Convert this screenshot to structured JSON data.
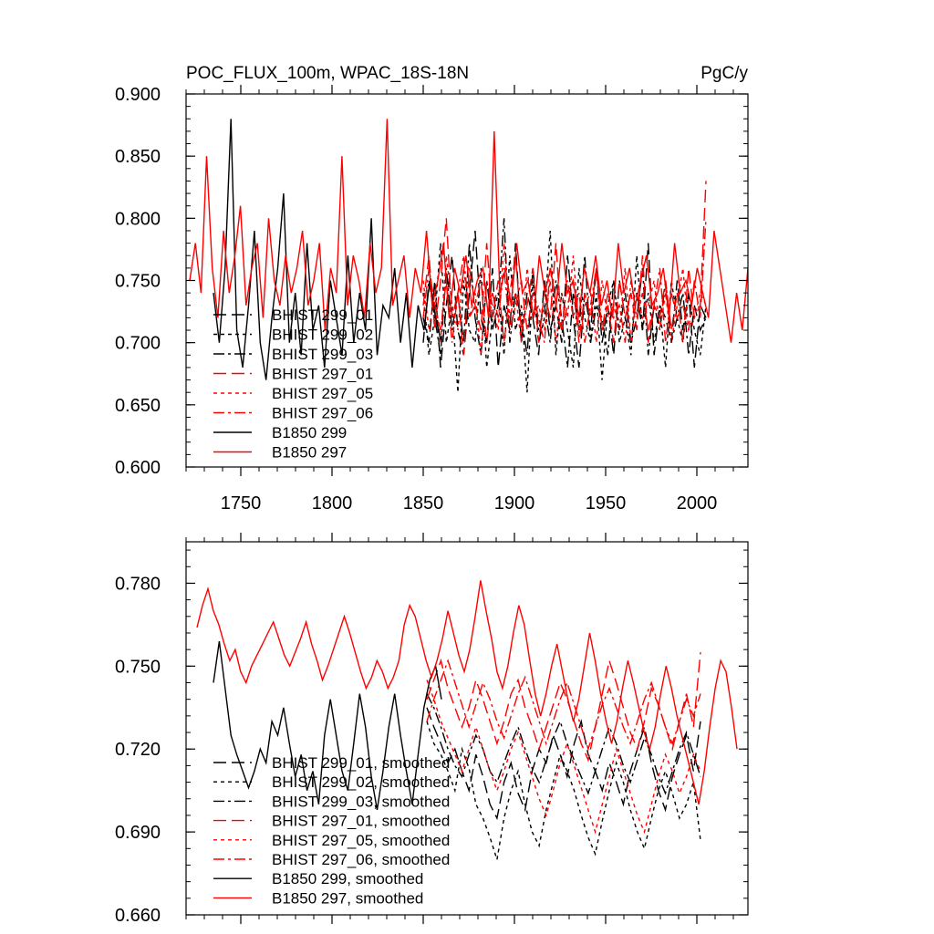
{
  "chart_data": [
    {
      "type": "line",
      "title": "POC_FLUX_100m, WPAC_18S-18N",
      "units": "PgC/y",
      "xlim": [
        1720,
        2028
      ],
      "ylim": [
        0.6,
        0.9
      ],
      "xticks": [
        1750,
        1800,
        1850,
        1900,
        1950,
        2000
      ],
      "xtick_labels": [
        "1750",
        "1800",
        "1850",
        "1900",
        "1950",
        "2000"
      ],
      "yticks": [
        0.6,
        0.65,
        0.7,
        0.75,
        0.8,
        0.85,
        0.9
      ],
      "ytick_labels": [
        "0.600",
        "0.650",
        "0.700",
        "0.750",
        "0.800",
        "0.850",
        "0.900"
      ],
      "legend_position": "bottom-left",
      "series": [
        {
          "name": "BHIST 299_01",
          "color": "#000000",
          "dash": "long-dash",
          "x_start": 1850,
          "x_end": 2005,
          "values": [
            0.72,
            0.7,
            0.75,
            0.68,
            0.73,
            0.77,
            0.71,
            0.69,
            0.74,
            0.79,
            0.72,
            0.7,
            0.76,
            0.68,
            0.73,
            0.71,
            0.78,
            0.7,
            0.74,
            0.72,
            0.69,
            0.75,
            0.71,
            0.73,
            0.7,
            0.77,
            0.72,
            0.68,
            0.74,
            0.71,
            0.76,
            0.7,
            0.73,
            0.69,
            0.75,
            0.72,
            0.7,
            0.74,
            0.71,
            0.78,
            0.69,
            0.73,
            0.72,
            0.7,
            0.75,
            0.71,
            0.74,
            0.68,
            0.73,
            0.72
          ]
        },
        {
          "name": "BHIST 299_02",
          "color": "#000000",
          "dash": "short-dash",
          "x_start": 1850,
          "x_end": 2005,
          "values": [
            0.74,
            0.69,
            0.72,
            0.78,
            0.7,
            0.73,
            0.66,
            0.75,
            0.71,
            0.7,
            0.76,
            0.68,
            0.72,
            0.74,
            0.69,
            0.77,
            0.71,
            0.73,
            0.66,
            0.75,
            0.7,
            0.72,
            0.79,
            0.69,
            0.74,
            0.71,
            0.68,
            0.76,
            0.72,
            0.7,
            0.74,
            0.67,
            0.73,
            0.75,
            0.7,
            0.72,
            0.69,
            0.77,
            0.71,
            0.74,
            0.7,
            0.73,
            0.68,
            0.75,
            0.72,
            0.7,
            0.74,
            0.71,
            0.69,
            0.73
          ]
        },
        {
          "name": "BHIST 299_03",
          "color": "#000000",
          "dash": "dash-dot",
          "x_start": 1850,
          "x_end": 2005,
          "values": [
            0.7,
            0.75,
            0.72,
            0.69,
            0.76,
            0.71,
            0.74,
            0.7,
            0.78,
            0.72,
            0.69,
            0.75,
            0.71,
            0.73,
            0.8,
            0.7,
            0.74,
            0.72,
            0.69,
            0.76,
            0.71,
            0.73,
            0.7,
            0.75,
            0.72,
            0.68,
            0.74,
            0.71,
            0.77,
            0.7,
            0.73,
            0.72,
            0.69,
            0.75,
            0.71,
            0.74,
            0.7,
            0.72,
            0.76,
            0.69,
            0.73,
            0.71,
            0.75,
            0.7,
            0.72,
            0.74,
            0.69,
            0.73,
            0.71,
            0.72
          ]
        },
        {
          "name": "BHIST 297_01",
          "color": "#ff0000",
          "dash": "long-dash",
          "x_start": 1850,
          "x_end": 2005,
          "values": [
            0.73,
            0.77,
            0.71,
            0.75,
            0.8,
            0.72,
            0.74,
            0.69,
            0.76,
            0.73,
            0.71,
            0.78,
            0.72,
            0.75,
            0.7,
            0.74,
            0.77,
            0.71,
            0.73,
            0.76,
            0.7,
            0.74,
            0.72,
            0.78,
            0.71,
            0.73,
            0.75,
            0.7,
            0.74,
            0.72,
            0.76,
            0.71,
            0.73,
            0.7,
            0.75,
            0.72,
            0.74,
            0.71,
            0.77,
            0.7,
            0.73,
            0.72,
            0.75,
            0.71,
            0.74,
            0.7,
            0.76,
            0.72,
            0.73,
            0.83
          ]
        },
        {
          "name": "BHIST 297_05",
          "color": "#ff0000",
          "dash": "short-dash",
          "x_start": 1850,
          "x_end": 2005,
          "values": [
            0.75,
            0.71,
            0.74,
            0.7,
            0.77,
            0.73,
            0.71,
            0.76,
            0.72,
            0.74,
            0.69,
            0.75,
            0.73,
            0.71,
            0.78,
            0.72,
            0.74,
            0.7,
            0.76,
            0.72,
            0.73,
            0.71,
            0.75,
            0.7,
            0.74,
            0.72,
            0.77,
            0.71,
            0.73,
            0.74,
            0.7,
            0.75,
            0.72,
            0.73,
            0.71,
            0.76,
            0.7,
            0.74,
            0.72,
            0.73,
            0.75,
            0.71,
            0.74,
            0.7,
            0.73,
            0.76,
            0.71,
            0.72,
            0.74,
            0.73
          ]
        },
        {
          "name": "BHIST 297_06",
          "color": "#ff0000",
          "dash": "dash-dot",
          "x_start": 1850,
          "x_end": 2005,
          "values": [
            0.72,
            0.76,
            0.73,
            0.71,
            0.75,
            0.7,
            0.74,
            0.77,
            0.72,
            0.73,
            0.75,
            0.7,
            0.74,
            0.72,
            0.76,
            0.71,
            0.73,
            0.75,
            0.71,
            0.74,
            0.72,
            0.7,
            0.76,
            0.73,
            0.71,
            0.75,
            0.72,
            0.74,
            0.7,
            0.73,
            0.76,
            0.71,
            0.74,
            0.72,
            0.73,
            0.7,
            0.75,
            0.72,
            0.74,
            0.71,
            0.73,
            0.76,
            0.7,
            0.74,
            0.72,
            0.73,
            0.71,
            0.75,
            0.72,
            0.8
          ]
        },
        {
          "name": "B1850 299",
          "color": "#000000",
          "dash": "solid",
          "x_start": 1735,
          "x_end": 1860,
          "values": [
            0.74,
            0.7,
            0.76,
            0.88,
            0.71,
            0.68,
            0.73,
            0.79,
            0.7,
            0.67,
            0.72,
            0.76,
            0.82,
            0.7,
            0.74,
            0.69,
            0.78,
            0.71,
            0.73,
            0.68,
            0.75,
            0.72,
            0.69,
            0.77,
            0.7,
            0.74,
            0.71,
            0.8,
            0.69,
            0.73,
            0.72,
            0.76,
            0.7,
            0.74,
            0.68,
            0.73,
            0.71,
            0.75,
            0.72,
            0.7
          ]
        },
        {
          "name": "B1850 297",
          "color": "#ff0000",
          "dash": "solid",
          "x_start": 1722,
          "x_end": 2028,
          "values": [
            0.75,
            0.78,
            0.74,
            0.85,
            0.76,
            0.72,
            0.79,
            0.74,
            0.77,
            0.81,
            0.73,
            0.76,
            0.78,
            0.72,
            0.8,
            0.75,
            0.73,
            0.77,
            0.74,
            0.76,
            0.79,
            0.73,
            0.75,
            0.78,
            0.71,
            0.76,
            0.74,
            0.85,
            0.73,
            0.77,
            0.75,
            0.72,
            0.78,
            0.74,
            0.76,
            0.88,
            0.73,
            0.75,
            0.77,
            0.72,
            0.76,
            0.74,
            0.79,
            0.73,
            0.75,
            0.78,
            0.72,
            0.76,
            0.74,
            0.77,
            0.73,
            0.75,
            0.76,
            0.72,
            0.87,
            0.74,
            0.76,
            0.73,
            0.78,
            0.74,
            0.75,
            0.72,
            0.77,
            0.74,
            0.76,
            0.73,
            0.78,
            0.74,
            0.75,
            0.72,
            0.76,
            0.74,
            0.77,
            0.73,
            0.75,
            0.72,
            0.78,
            0.74,
            0.76,
            0.73,
            0.75,
            0.77,
            0.73,
            0.74,
            0.76,
            0.72,
            0.78,
            0.74,
            0.75,
            0.73,
            0.76,
            0.74,
            0.72,
            0.79,
            0.76,
            0.73,
            0.7,
            0.74,
            0.71,
            0.76
          ]
        }
      ]
    },
    {
      "type": "line",
      "title": "",
      "xlim": [
        1720,
        2028
      ],
      "ylim": [
        0.66,
        0.795
      ],
      "xticks": [
        1750,
        1800,
        1850,
        1900,
        1950,
        2000
      ],
      "yticks": [
        0.66,
        0.69,
        0.72,
        0.75,
        0.78
      ],
      "ytick_labels": [
        "0.660",
        "0.690",
        "0.720",
        "0.750",
        "0.780"
      ],
      "legend_position": "bottom-left",
      "series": [
        {
          "name": "BHIST 299_01, smoothed",
          "color": "#000000",
          "dash": "long-dash",
          "x_start": 1852,
          "x_end": 2002,
          "values": [
            0.735,
            0.728,
            0.722,
            0.715,
            0.72,
            0.712,
            0.705,
            0.718,
            0.71,
            0.7,
            0.695,
            0.708,
            0.715,
            0.704,
            0.698,
            0.712,
            0.72,
            0.715,
            0.725,
            0.718,
            0.71,
            0.722,
            0.73,
            0.718,
            0.712,
            0.705,
            0.715,
            0.708,
            0.7,
            0.712,
            0.72,
            0.728,
            0.715,
            0.705,
            0.698,
            0.71,
            0.718,
            0.725,
            0.712,
            0.73
          ]
        },
        {
          "name": "BHIST 299_02, smoothed",
          "color": "#000000",
          "dash": "short-dash",
          "x_start": 1852,
          "x_end": 2002,
          "values": [
            0.73,
            0.722,
            0.718,
            0.712,
            0.705,
            0.72,
            0.713,
            0.7,
            0.695,
            0.688,
            0.68,
            0.695,
            0.705,
            0.712,
            0.7,
            0.69,
            0.685,
            0.698,
            0.708,
            0.718,
            0.712,
            0.705,
            0.696,
            0.688,
            0.682,
            0.694,
            0.705,
            0.715,
            0.708,
            0.698,
            0.69,
            0.684,
            0.695,
            0.705,
            0.712,
            0.704,
            0.695,
            0.7,
            0.708,
            0.687
          ]
        },
        {
          "name": "BHIST 299_03, smoothed",
          "color": "#000000",
          "dash": "dash-dot",
          "x_start": 1852,
          "x_end": 2002,
          "values": [
            0.74,
            0.735,
            0.728,
            0.72,
            0.714,
            0.71,
            0.718,
            0.725,
            0.72,
            0.712,
            0.708,
            0.715,
            0.722,
            0.728,
            0.72,
            0.713,
            0.708,
            0.716,
            0.724,
            0.73,
            0.722,
            0.716,
            0.71,
            0.704,
            0.712,
            0.72,
            0.728,
            0.722,
            0.714,
            0.708,
            0.716,
            0.724,
            0.718,
            0.71,
            0.704,
            0.712,
            0.72,
            0.726,
            0.718,
            0.71
          ]
        },
        {
          "name": "BHIST 297_01, smoothed",
          "color": "#ff0000",
          "dash": "long-dash",
          "x_start": 1852,
          "x_end": 2002,
          "values": [
            0.738,
            0.745,
            0.752,
            0.742,
            0.735,
            0.728,
            0.735,
            0.745,
            0.738,
            0.73,
            0.722,
            0.73,
            0.74,
            0.745,
            0.735,
            0.728,
            0.72,
            0.728,
            0.736,
            0.744,
            0.738,
            0.73,
            0.722,
            0.716,
            0.728,
            0.74,
            0.752,
            0.744,
            0.735,
            0.726,
            0.72,
            0.73,
            0.742,
            0.736,
            0.728,
            0.72,
            0.73,
            0.74,
            0.728,
            0.755
          ]
        },
        {
          "name": "BHIST 297_05, smoothed",
          "color": "#ff0000",
          "dash": "short-dash",
          "x_start": 1852,
          "x_end": 2002,
          "values": [
            0.745,
            0.738,
            0.73,
            0.724,
            0.718,
            0.712,
            0.72,
            0.728,
            0.72,
            0.712,
            0.705,
            0.712,
            0.72,
            0.726,
            0.718,
            0.71,
            0.702,
            0.696,
            0.705,
            0.715,
            0.722,
            0.714,
            0.706,
            0.698,
            0.69,
            0.7,
            0.71,
            0.72,
            0.712,
            0.704,
            0.696,
            0.69,
            0.7,
            0.71,
            0.718,
            0.712,
            0.704,
            0.71,
            0.718,
            0.712
          ]
        },
        {
          "name": "BHIST 297_06, smoothed",
          "color": "#ff0000",
          "dash": "dash-dot",
          "x_start": 1852,
          "x_end": 2002,
          "values": [
            0.73,
            0.738,
            0.745,
            0.752,
            0.744,
            0.736,
            0.728,
            0.736,
            0.744,
            0.738,
            0.73,
            0.724,
            0.732,
            0.74,
            0.746,
            0.738,
            0.73,
            0.722,
            0.73,
            0.738,
            0.744,
            0.736,
            0.728,
            0.72,
            0.728,
            0.736,
            0.742,
            0.735,
            0.728,
            0.722,
            0.73,
            0.738,
            0.744,
            0.736,
            0.728,
            0.722,
            0.73,
            0.738,
            0.732,
            0.74
          ]
        },
        {
          "name": "B1850 299, smoothed",
          "color": "#000000",
          "dash": "solid",
          "x_start": 1735,
          "x_end": 1860,
          "values": [
            0.744,
            0.759,
            0.742,
            0.725,
            0.718,
            0.712,
            0.706,
            0.712,
            0.72,
            0.715,
            0.73,
            0.725,
            0.735,
            0.722,
            0.71,
            0.718,
            0.705,
            0.712,
            0.7,
            0.725,
            0.738,
            0.725,
            0.712,
            0.705,
            0.722,
            0.74,
            0.728,
            0.71,
            0.698,
            0.712,
            0.728,
            0.74,
            0.725,
            0.712,
            0.7,
            0.718,
            0.735,
            0.745,
            0.75,
            0.738
          ]
        },
        {
          "name": "B1850 297, smoothed",
          "color": "#ff0000",
          "dash": "solid",
          "x_start": 1726,
          "x_end": 2022,
          "values": [
            0.764,
            0.772,
            0.778,
            0.77,
            0.765,
            0.758,
            0.752,
            0.756,
            0.748,
            0.744,
            0.75,
            0.754,
            0.758,
            0.762,
            0.766,
            0.76,
            0.754,
            0.75,
            0.755,
            0.76,
            0.766,
            0.758,
            0.752,
            0.745,
            0.75,
            0.756,
            0.762,
            0.768,
            0.762,
            0.755,
            0.748,
            0.742,
            0.746,
            0.752,
            0.748,
            0.742,
            0.746,
            0.752,
            0.765,
            0.772,
            0.768,
            0.76,
            0.752,
            0.746,
            0.752,
            0.76,
            0.77,
            0.762,
            0.754,
            0.748,
            0.756,
            0.768,
            0.781,
            0.77,
            0.76,
            0.748,
            0.742,
            0.75,
            0.762,
            0.772,
            0.765,
            0.752,
            0.74,
            0.732,
            0.74,
            0.75,
            0.758,
            0.748,
            0.738,
            0.73,
            0.738,
            0.75,
            0.762,
            0.752,
            0.74,
            0.73,
            0.722,
            0.73,
            0.742,
            0.752,
            0.744,
            0.735,
            0.726,
            0.72,
            0.728,
            0.74,
            0.75,
            0.742,
            0.732,
            0.724,
            0.716,
            0.708,
            0.7,
            0.712,
            0.728,
            0.742,
            0.752,
            0.748,
            0.735,
            0.72
          ]
        }
      ]
    }
  ]
}
